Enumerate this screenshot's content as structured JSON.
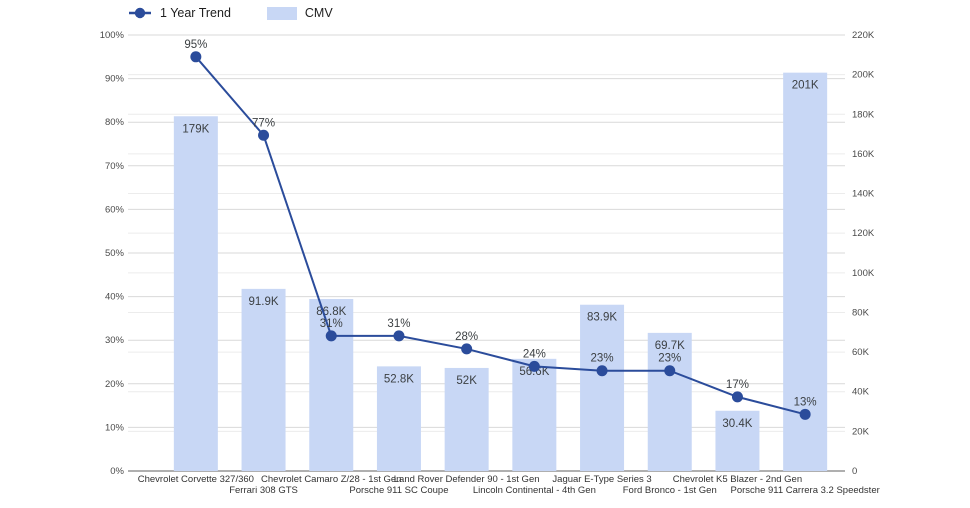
{
  "chart_data": {
    "type": "combo",
    "title": "",
    "categories": [
      "Chevrolet Corvette 327/360",
      "Ferrari 308 GTS",
      "Chevrolet Camaro Z/28 - 1st Gen",
      "Porsche 911 SC Coupe",
      "Land Rover Defender 90 - 1st Gen",
      "Lincoln Continental - 4th Gen",
      "Jaguar E-Type Series 3",
      "Ford Bronco - 1st Gen",
      "Chevrolet K5 Blazer - 2nd Gen",
      "Porsche 911 Carrera 3.2 Speedster"
    ],
    "series": [
      {
        "name": "1 Year Trend",
        "type": "line",
        "axis": "left",
        "unit": "%",
        "values": [
          95,
          77,
          31,
          31,
          28,
          24,
          23,
          23,
          17,
          13
        ],
        "labels": [
          "95%",
          "77%",
          "31%",
          "31%",
          "28%",
          "24%",
          "23%",
          "23%",
          "17%",
          "13%"
        ],
        "color": "#2b4c9b"
      },
      {
        "name": "CMV",
        "type": "bar",
        "axis": "right",
        "unit": "K",
        "values": [
          179,
          91.9,
          86.8,
          52.8,
          52,
          56.6,
          83.9,
          69.7,
          30.4,
          201
        ],
        "labels": [
          "179K",
          "91.9K",
          "86.8K",
          "52.8K",
          "52K",
          "56.6K",
          "83.9K",
          "69.7K",
          "30.4K",
          "201K"
        ],
        "color": "#c8d7f5"
      }
    ],
    "left_axis": {
      "min": 0,
      "max": 100,
      "tick_step": 10,
      "ticks": [
        "0%",
        "10%",
        "20%",
        "30%",
        "40%",
        "50%",
        "60%",
        "70%",
        "80%",
        "90%",
        "100%"
      ]
    },
    "right_axis": {
      "min": 0,
      "max": 220,
      "tick_step": 20,
      "ticks": [
        "0",
        "20K",
        "40K",
        "60K",
        "80K",
        "100K",
        "120K",
        "140K",
        "160K",
        "180K",
        "200K",
        "220K"
      ]
    },
    "grid": {
      "major_on": true,
      "minor_on": true
    },
    "legend_position": "top-left",
    "colors": {
      "line": "#2b4c9b",
      "bar": "#c8d7f5",
      "grid_major": "#d9d9d9",
      "grid_minor": "#ececec",
      "baseline": "#5f5f5f",
      "tick_text": "#4a4a4a",
      "category_text": "#333333",
      "data_label_text": "#3c4043"
    }
  }
}
